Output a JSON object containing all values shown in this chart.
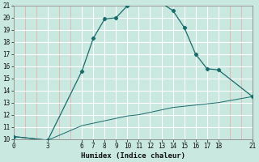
{
  "xlabel": "Humidex (Indice chaleur)",
  "bg_color": "#c8e8e0",
  "grid_major_color": "#ffffff",
  "grid_minor_color": "#e8b0b0",
  "line_color": "#1a6b6b",
  "upper_x": [
    0,
    3,
    6,
    7,
    8,
    9,
    10,
    11,
    12,
    13,
    14,
    15,
    16,
    17,
    18,
    21
  ],
  "upper_y": [
    10.2,
    9.9,
    15.6,
    18.3,
    19.9,
    20.0,
    21.0,
    21.2,
    21.5,
    21.2,
    20.6,
    19.2,
    17.0,
    15.8,
    15.7,
    13.5
  ],
  "lower_x": [
    0,
    3,
    6,
    7,
    8,
    9,
    10,
    11,
    12,
    13,
    14,
    15,
    16,
    17,
    18,
    21
  ],
  "lower_y": [
    10.2,
    9.9,
    11.1,
    11.3,
    11.5,
    11.7,
    11.9,
    12.0,
    12.2,
    12.4,
    12.6,
    12.7,
    12.8,
    12.9,
    13.0,
    13.5
  ],
  "xlim": [
    0,
    21
  ],
  "ylim": [
    10,
    21
  ],
  "xticks": [
    0,
    3,
    6,
    7,
    8,
    9,
    10,
    11,
    12,
    13,
    14,
    15,
    16,
    17,
    18,
    21
  ],
  "yticks": [
    10,
    11,
    12,
    13,
    14,
    15,
    16,
    17,
    18,
    19,
    20,
    21
  ],
  "tick_fontsize": 5.5,
  "label_fontsize": 6.5
}
